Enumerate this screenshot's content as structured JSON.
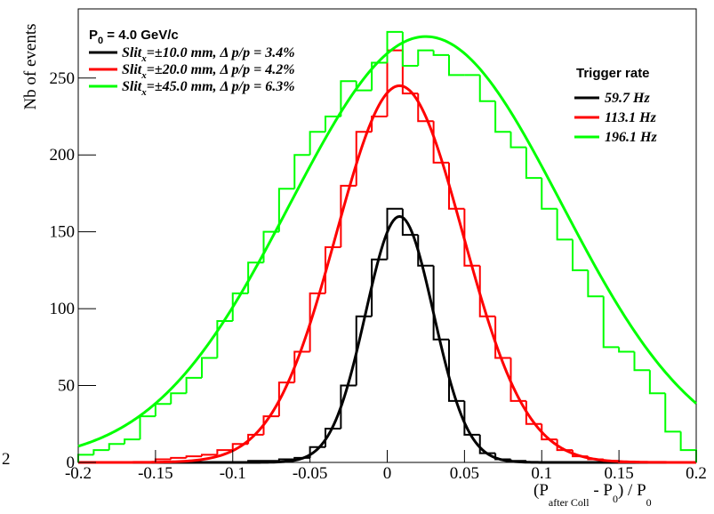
{
  "chart_data": {
    "type": "histogram",
    "header": {
      "main": "P",
      "sub": "0",
      "rest": " = 4.0 GeV/c"
    },
    "rate_title": "Trigger rate",
    "x_label": {
      "open": "(P",
      "sub1": "after Coll",
      "mid": " - P",
      "sub2": "0",
      "close": ") / P",
      "sub3": "0"
    },
    "y_label": "Nb of events",
    "fragment": "2",
    "xlim": [
      -0.2,
      0.2
    ],
    "ylim": [
      0,
      295
    ],
    "xticks": [
      -0.2,
      -0.15,
      -0.1,
      -0.05,
      0,
      0.05,
      0.1,
      0.15,
      0.2
    ],
    "yticks": [
      0,
      50,
      100,
      150,
      200,
      250
    ],
    "bins": [
      -0.2,
      -0.19,
      -0.18,
      -0.17,
      -0.16,
      -0.15,
      -0.14,
      -0.13,
      -0.12,
      -0.11,
      -0.1,
      -0.09,
      -0.08,
      -0.07,
      -0.06,
      -0.05,
      -0.04,
      -0.03,
      -0.02,
      -0.01,
      0,
      0.01,
      0.02,
      0.03,
      0.04,
      0.05,
      0.06,
      0.07,
      0.08,
      0.09,
      0.1,
      0.11,
      0.12,
      0.13,
      0.14,
      0.15,
      0.16,
      0.17,
      0.18,
      0.19,
      0.2
    ],
    "series": [
      {
        "name": "Slit",
        "name_sub": "x",
        "name_rest": "=±10.0 mm, Δ p/p = 3.4%",
        "rate": "59.7 Hz",
        "color": "#000000",
        "values": [
          0,
          0,
          0,
          0,
          0,
          0,
          0,
          0,
          0,
          0,
          0,
          1,
          1,
          2,
          3,
          10,
          22,
          50,
          95,
          132,
          165,
          148,
          128,
          80,
          40,
          18,
          6,
          2,
          1,
          0,
          0,
          0,
          0,
          0,
          0,
          0,
          0,
          0,
          0,
          0
        ],
        "fit_amplitude": 160,
        "fit_mean": 0.008,
        "fit_sigma": 0.022
      },
      {
        "name": "Slit",
        "name_sub": "x",
        "name_rest": "=±20.0 mm, Δ p/p = 4.2%",
        "rate": "113.1 Hz",
        "color": "#ff0000",
        "values": [
          0,
          0,
          0,
          0,
          0,
          2,
          3,
          4,
          5,
          8,
          12,
          18,
          30,
          52,
          72,
          110,
          140,
          180,
          215,
          225,
          268,
          240,
          222,
          195,
          165,
          128,
          95,
          68,
          40,
          25,
          15,
          8,
          4,
          2,
          1,
          0,
          0,
          0,
          0,
          0
        ],
        "fit_amplitude": 245,
        "fit_mean": 0.008,
        "fit_sigma": 0.041
      },
      {
        "name": "Slit",
        "name_sub": "x",
        "name_rest": "=±45.0 mm, Δ p/p = 6.3%",
        "rate": "196.1 Hz",
        "color": "#00ff00",
        "values": [
          5,
          8,
          12,
          15,
          30,
          38,
          45,
          55,
          68,
          92,
          110,
          130,
          150,
          178,
          200,
          215,
          225,
          248,
          242,
          260,
          280,
          258,
          268,
          265,
          252,
          252,
          235,
          215,
          205,
          185,
          165,
          145,
          125,
          108,
          75,
          72,
          60,
          45,
          20,
          8
        ],
        "fit_amplitude": 277,
        "fit_mean": 0.025,
        "fit_sigma": 0.088
      }
    ]
  }
}
